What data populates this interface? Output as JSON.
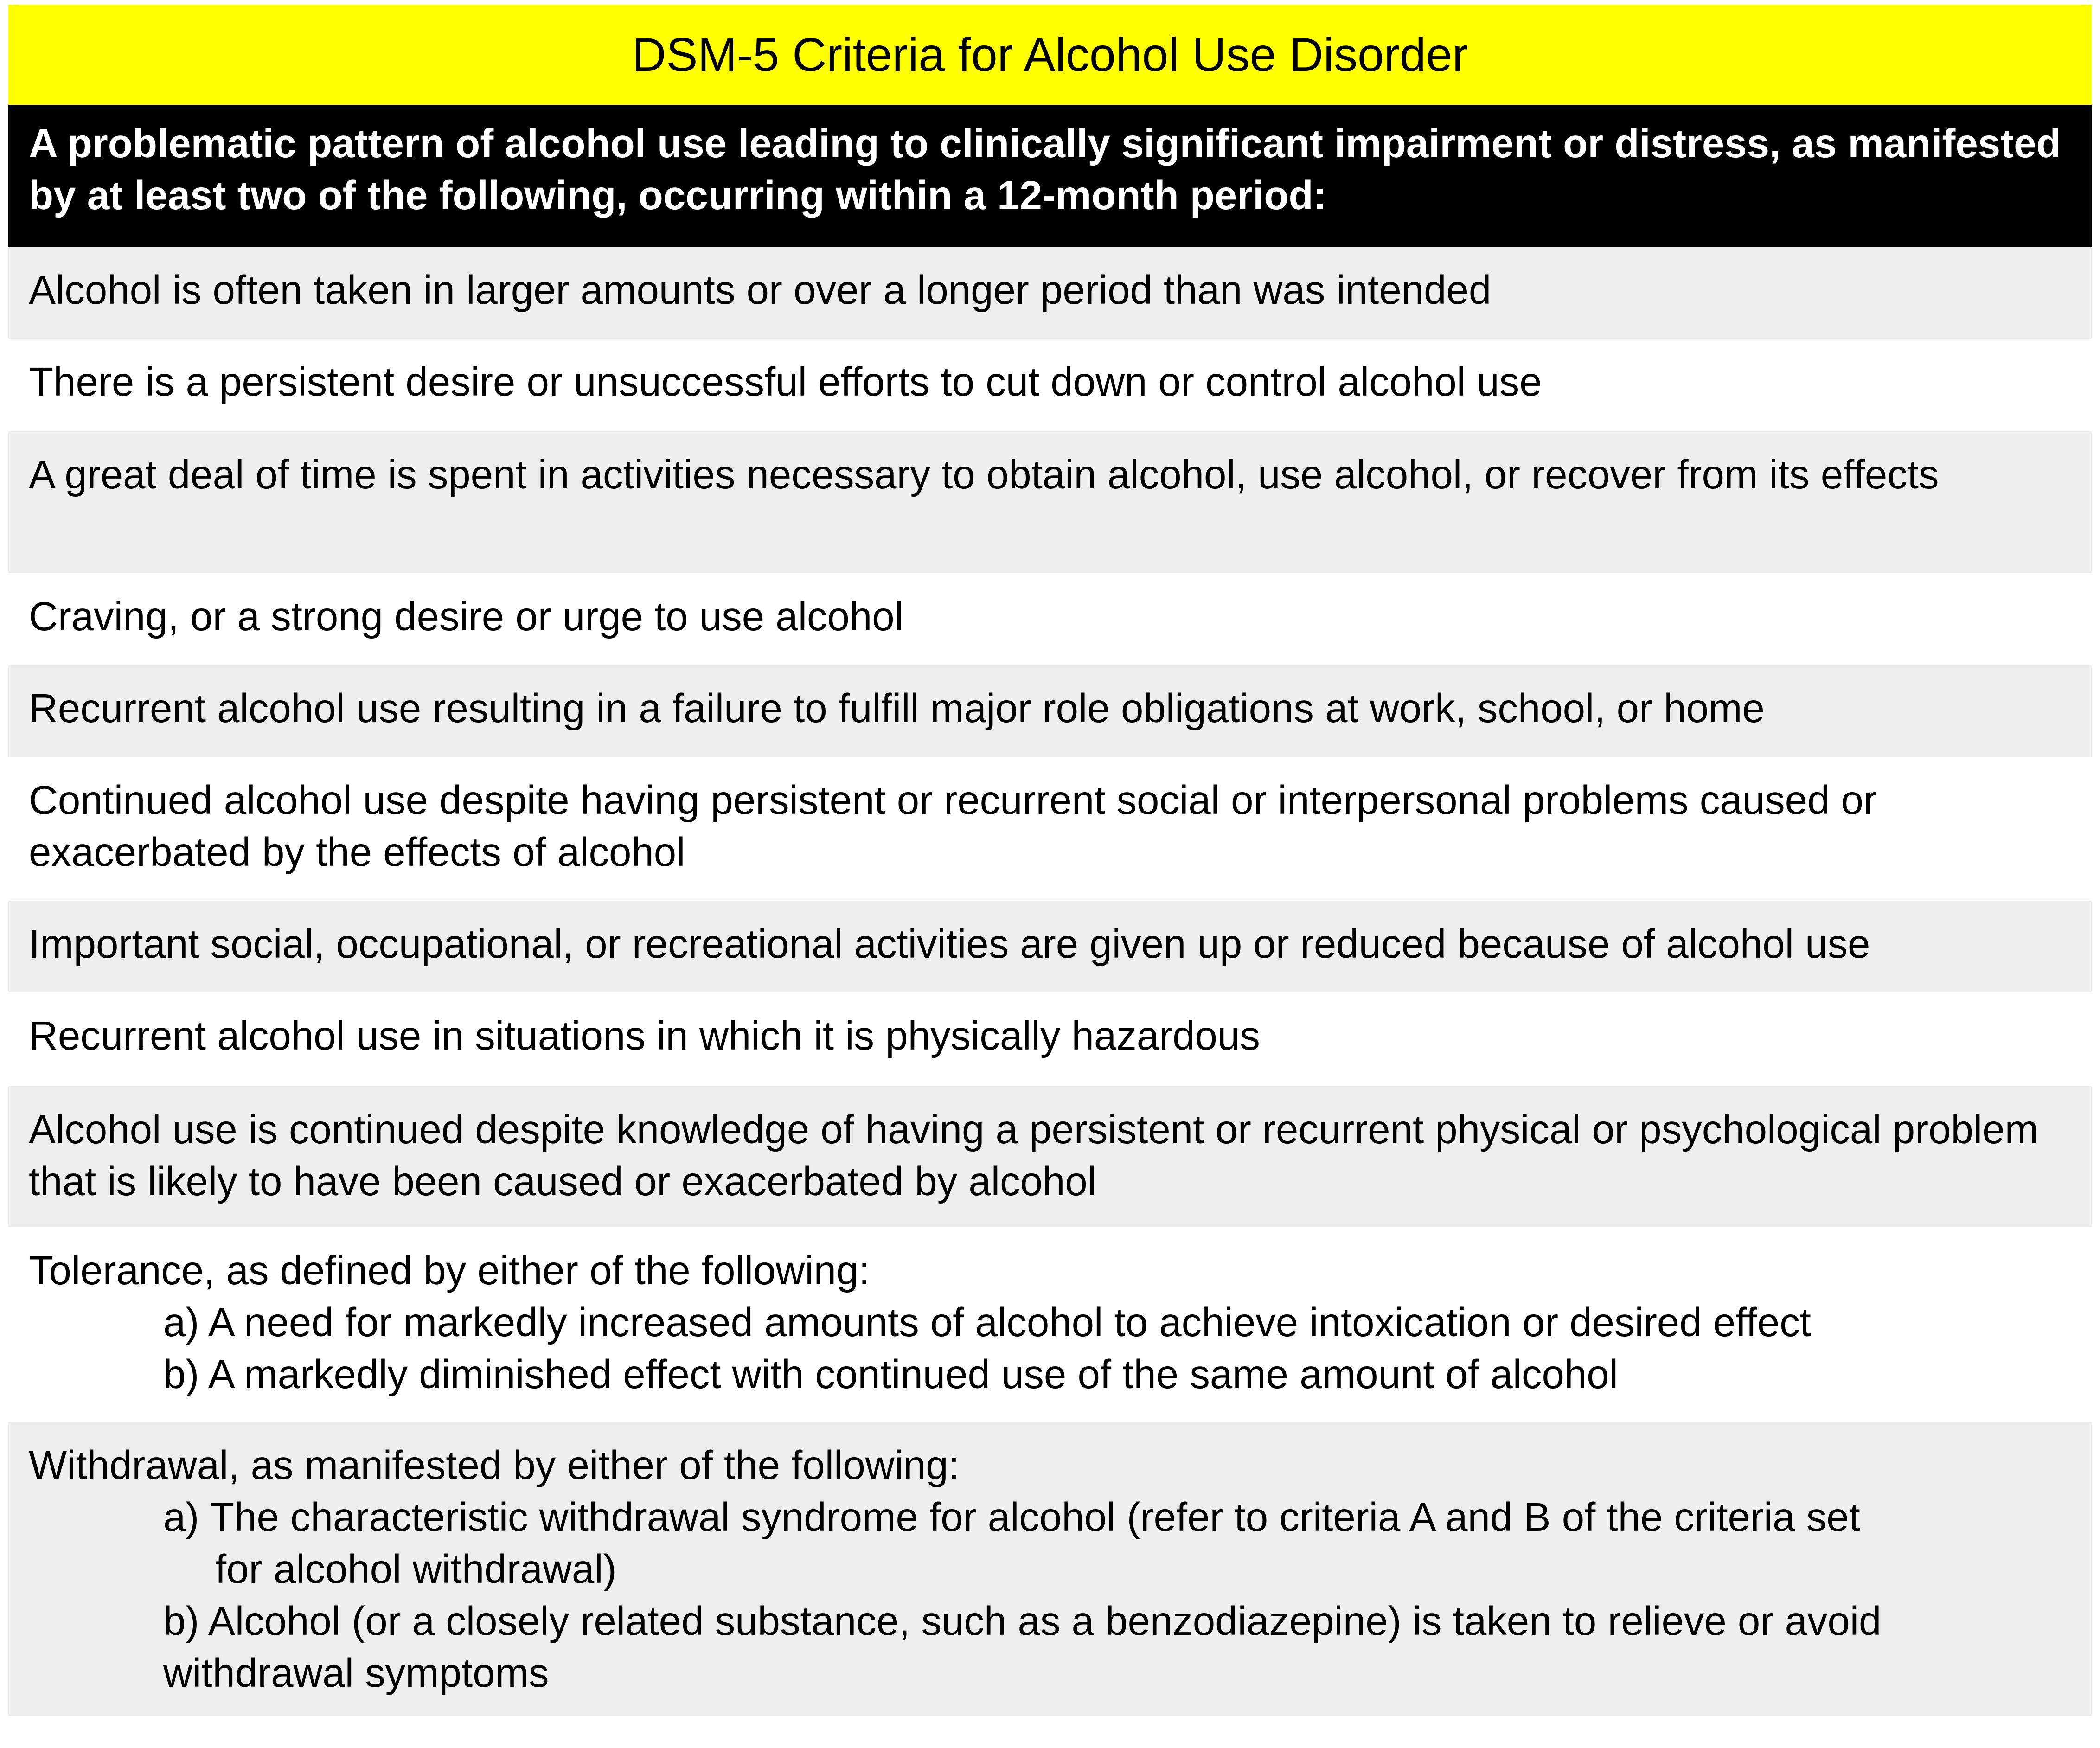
{
  "title": "DSM-5 Criteria for Alcohol Use Disorder",
  "intro": "A problematic pattern of alcohol use leading to clinically significant impairment or distress, as manifested by at least two of the following, occurring within a 12-month period:",
  "criteria": [
    "Alcohol is often taken in larger amounts or over a longer period than was intended",
    "There is a persistent desire or unsuccessful efforts to cut down or control alcohol use",
    "A great deal of time is spent in activities necessary to obtain alcohol, use alcohol, or recover from its effects",
    "Craving, or a strong desire or urge to use alcohol",
    "Recurrent alcohol use resulting in a failure to fulfill major role obligations at work, school, or home",
    "Continued alcohol use despite having persistent or recurrent social or interpersonal problems caused or exacerbated by the effects of alcohol",
    "Important social, occupational, or recreational activities are given up or reduced because of alcohol use",
    "Recurrent alcohol use in situations in which it is physically hazardous",
    "Alcohol use is continued despite knowledge of having a persistent or recurrent physical or psychological problem that is likely to have been caused or exacerbated by alcohol"
  ],
  "tolerance": {
    "lead": "Tolerance, as defined by either of the following:",
    "a": "a) A need for markedly increased amounts of alcohol to achieve intoxication or desired effect",
    "b": "b) A markedly diminished effect with continued use of the same amount of alcohol"
  },
  "withdrawal": {
    "lead": "Withdrawal, as manifested by either of the following:",
    "a_line1": "a) The characteristic withdrawal syndrome for alcohol (refer to criteria A and B of the criteria set",
    "a_line2": "for alcohol withdrawal)",
    "b_line1": "b) Alcohol (or a closely related substance, such as a benzodiazepine) is taken to relieve or avoid",
    "b_line2": "withdrawal symptoms"
  },
  "colors": {
    "title_bg": "#ffff00",
    "header_bg": "#000000",
    "header_text": "#ffffff",
    "shaded_row_bg": "#eeeeee",
    "plain_row_bg": "#ffffff"
  }
}
